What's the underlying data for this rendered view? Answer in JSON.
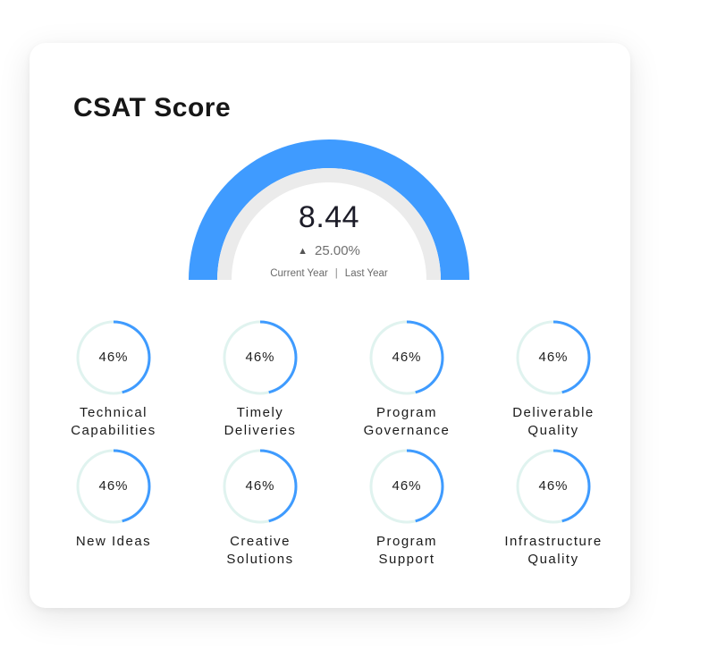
{
  "title": "CSAT Score",
  "gauge": {
    "value": "8.44",
    "change": "25.00%",
    "trend_icon": "triangle-up-icon",
    "legend_current": "Current Year",
    "legend_separator": "|",
    "legend_last": "Last Year",
    "color": "#3f9bff",
    "track_color": "#ebebeb"
  },
  "metric_colors": {
    "progress": "#3f9bff",
    "track": "#e0f3ef"
  },
  "metrics": [
    {
      "pct": "46%",
      "progress": 0.46,
      "label_lines": [
        "Technical",
        "Capabilities"
      ]
    },
    {
      "pct": "46%",
      "progress": 0.46,
      "label_lines": [
        "Timely",
        "Deliveries"
      ]
    },
    {
      "pct": "46%",
      "progress": 0.46,
      "label_lines": [
        "Program",
        "Governance"
      ]
    },
    {
      "pct": "46%",
      "progress": 0.46,
      "label_lines": [
        "Deliverable",
        "Quality"
      ]
    },
    {
      "pct": "46%",
      "progress": 0.46,
      "label_lines": [
        "New Ideas"
      ]
    },
    {
      "pct": "46%",
      "progress": 0.46,
      "label_lines": [
        "Creative",
        "Solutions"
      ]
    },
    {
      "pct": "46%",
      "progress": 0.46,
      "label_lines": [
        "Program",
        "Support"
      ]
    },
    {
      "pct": "46%",
      "progress": 0.46,
      "label_lines": [
        "Infrastructure",
        "Quality"
      ]
    }
  ]
}
